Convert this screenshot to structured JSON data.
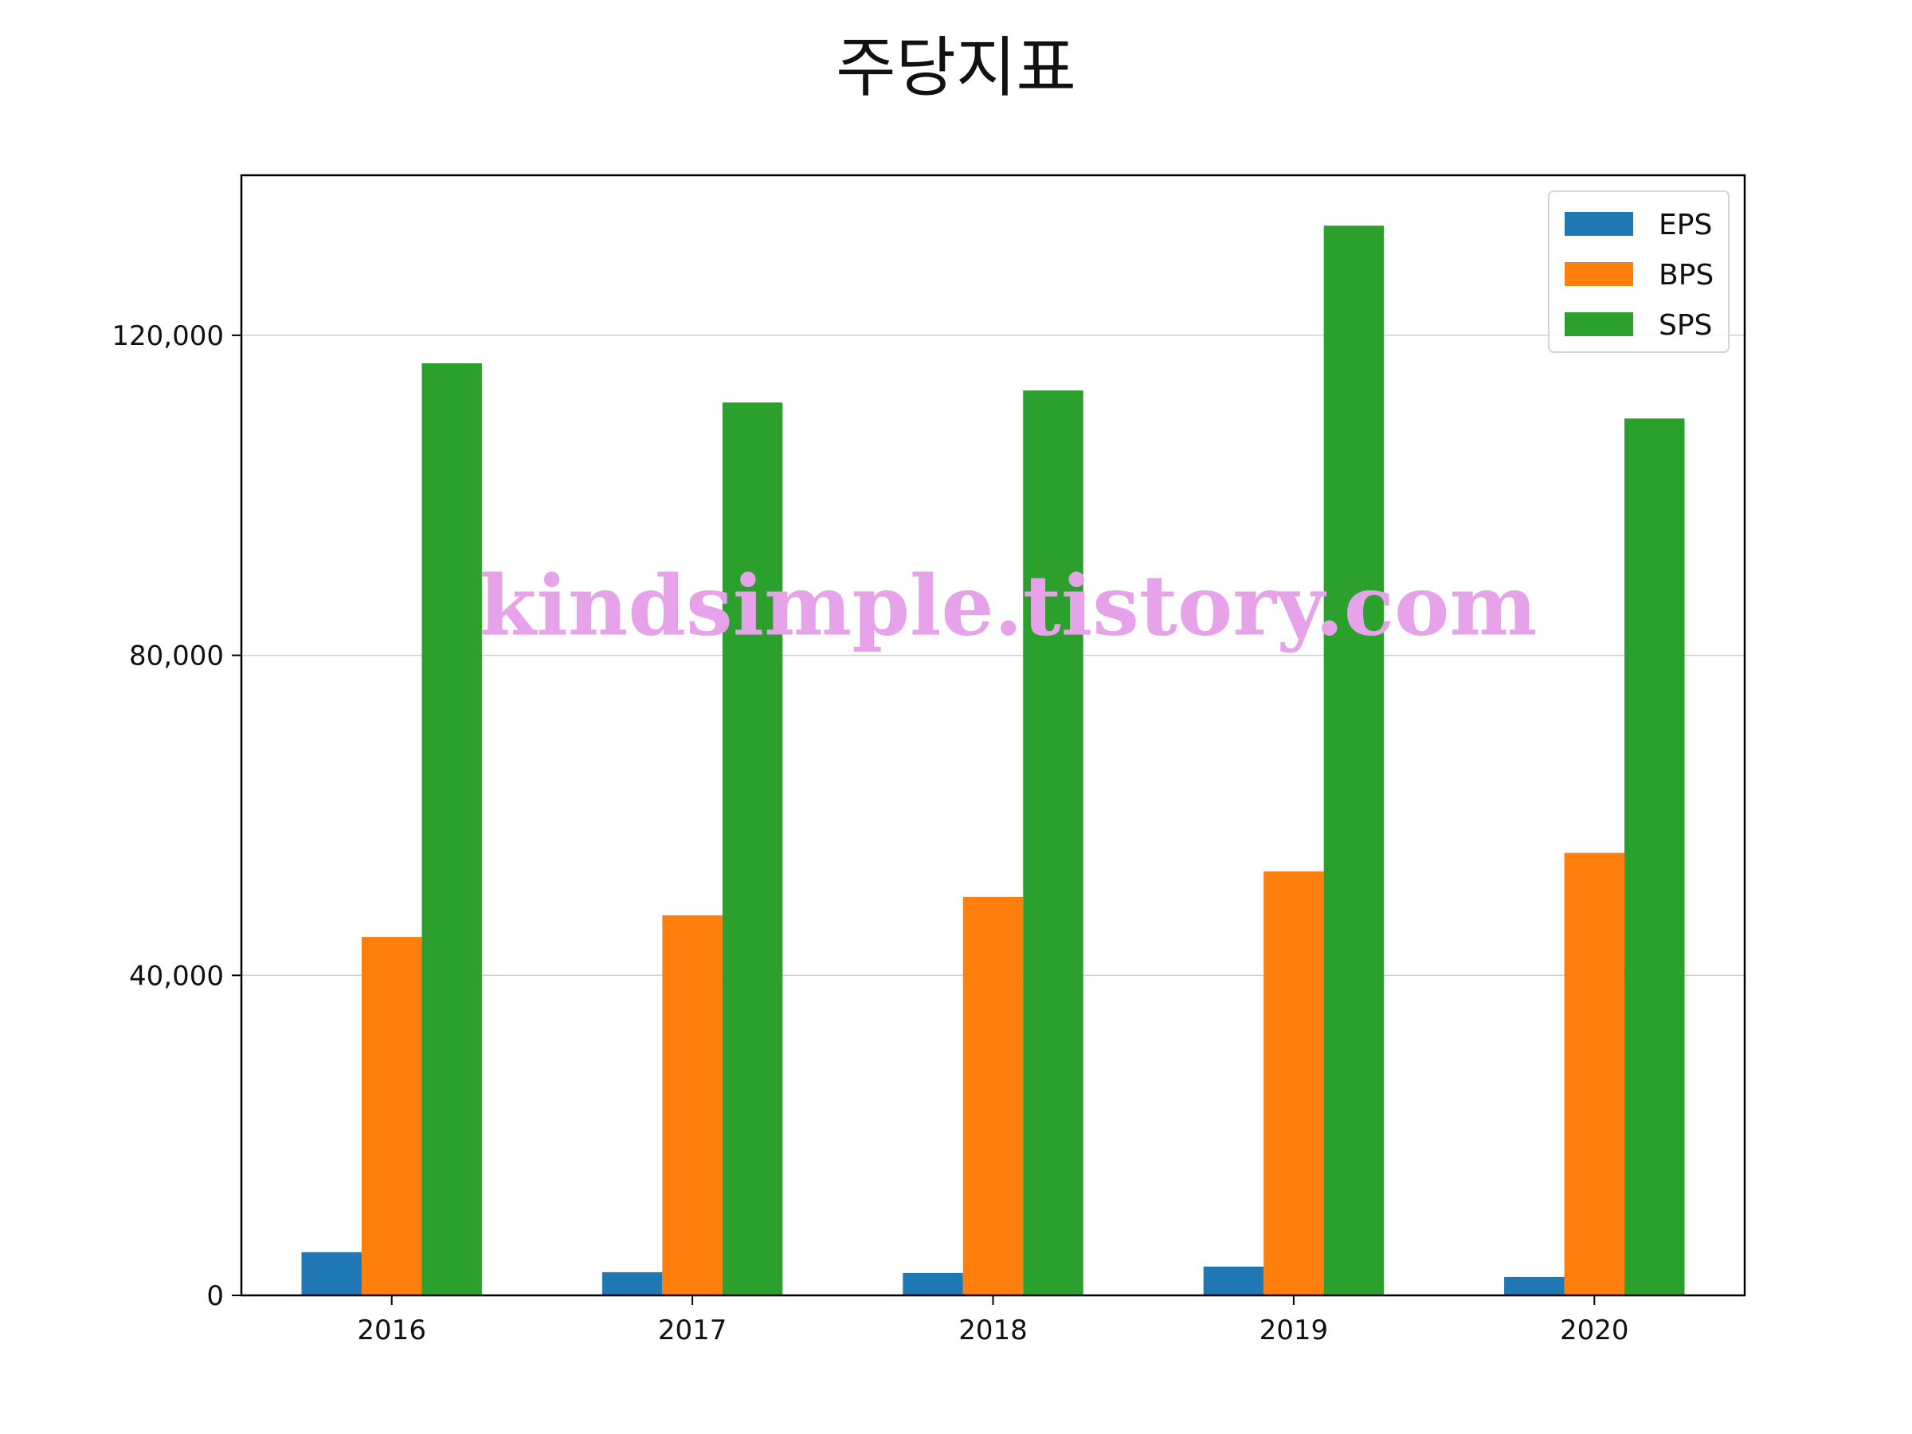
{
  "chart_data": {
    "type": "bar",
    "title": "주당지표",
    "xlabel": "",
    "ylabel": "",
    "categories": [
      "2016",
      "2017",
      "2018",
      "2019",
      "2020"
    ],
    "series": [
      {
        "name": "EPS",
        "color": "#1f77b4",
        "values": [
          5400,
          2900,
          2800,
          3600,
          2300
        ]
      },
      {
        "name": "BPS",
        "color": "#ff7f0e",
        "values": [
          44800,
          47500,
          49800,
          53000,
          55300
        ]
      },
      {
        "name": "SPS",
        "color": "#2ca02c",
        "values": [
          116500,
          111600,
          113100,
          133700,
          109600
        ]
      }
    ],
    "ylim": [
      0,
      140000
    ],
    "yticks": [
      0,
      40000,
      80000,
      120000
    ],
    "ytick_labels": [
      "0",
      "40,000",
      "80,000",
      "120,000"
    ],
    "grid": "y",
    "legend_position": "top-right",
    "watermark": "kindsimple.tistory.com"
  }
}
